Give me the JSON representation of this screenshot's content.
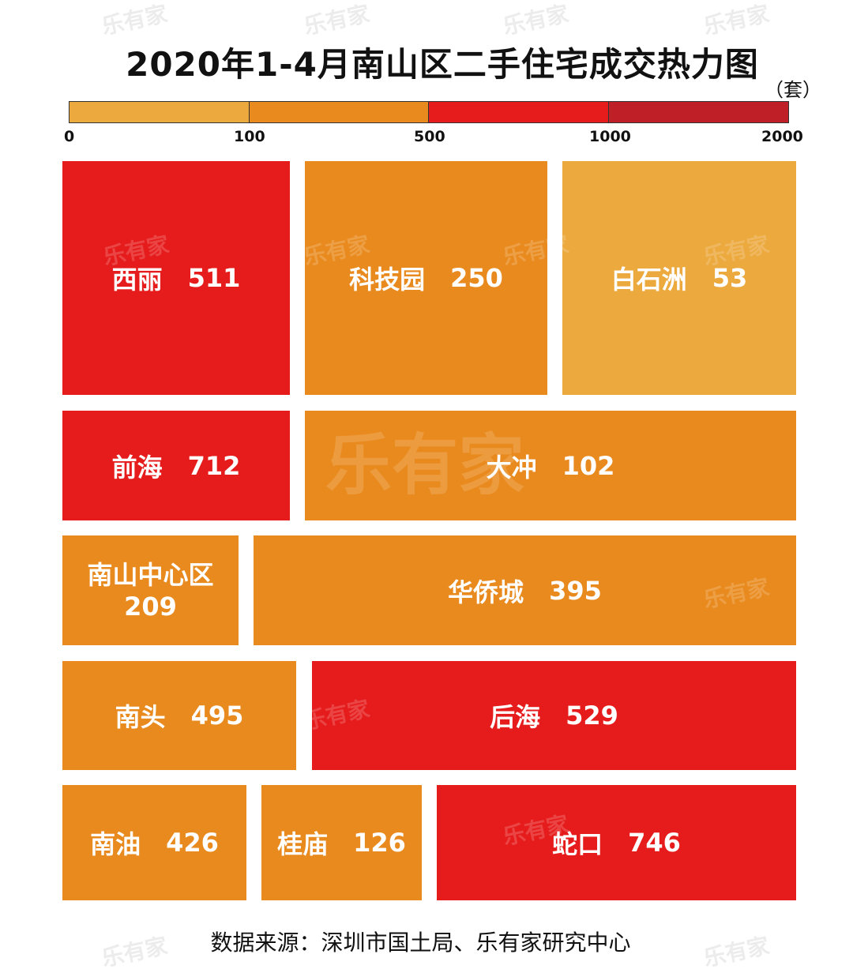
{
  "chart_data": {
    "type": "heatmap",
    "title": "2020年1-4月南山区二手住宅成交热力图",
    "unit": "（套）",
    "legend": {
      "ticks": [
        "0",
        "100",
        "500",
        "1000",
        "2000"
      ],
      "colors": [
        "#ECA93D",
        "#E98A1E",
        "#E61C1C",
        "#BF1F27"
      ]
    },
    "cells": [
      {
        "name": "西丽",
        "value": "511",
        "color": "#E61C1C"
      },
      {
        "name": "科技园",
        "value": "250",
        "color": "#E98A1E"
      },
      {
        "name": "白石洲",
        "value": "53",
        "color": "#ECA93D"
      },
      {
        "name": "前海",
        "value": "712",
        "color": "#E61C1C"
      },
      {
        "name": "大冲",
        "value": "102",
        "color": "#E98A1E"
      },
      {
        "name": "南山中心区",
        "value": "209",
        "color": "#E98A1E"
      },
      {
        "name": "华侨城",
        "value": "395",
        "color": "#E98A1E"
      },
      {
        "name": "南头",
        "value": "495",
        "color": "#E98A1E"
      },
      {
        "name": "后海",
        "value": "529",
        "color": "#E61C1C"
      },
      {
        "name": "南油",
        "value": "426",
        "color": "#E98A1E"
      },
      {
        "name": "桂庙",
        "value": "126",
        "color": "#E98A1E"
      },
      {
        "name": "蛇口",
        "value": "746",
        "color": "#E61C1C"
      }
    ],
    "source": "数据来源：深圳市国土局、乐有家研究中心",
    "watermark": "乐有家"
  }
}
